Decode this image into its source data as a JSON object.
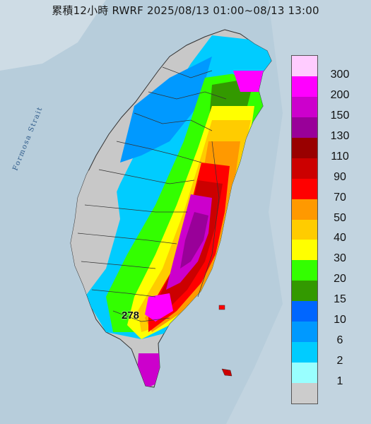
{
  "title": "累積12小時 RWRF 2025/08/13 01:00~08/13 13:00",
  "strait_label": "Formosa Strait",
  "peak_label": "278",
  "legend": {
    "items": [
      {
        "label": "300",
        "color": "#ffccff"
      },
      {
        "label": "200",
        "color": "#ff00ff"
      },
      {
        "label": "150",
        "color": "#cc00cc"
      },
      {
        "label": "130",
        "color": "#990099"
      },
      {
        "label": "110",
        "color": "#990000"
      },
      {
        "label": "90",
        "color": "#cc0000"
      },
      {
        "label": "70",
        "color": "#ff0000"
      },
      {
        "label": "50",
        "color": "#ff9900"
      },
      {
        "label": "40",
        "color": "#ffcc00"
      },
      {
        "label": "30",
        "color": "#ffff00"
      },
      {
        "label": "20",
        "color": "#33ff00"
      },
      {
        "label": "15",
        "color": "#339900"
      },
      {
        "label": "10",
        "color": "#0066ff"
      },
      {
        "label": "6",
        "color": "#0099ff"
      },
      {
        "label": "2",
        "color": "#00ccff"
      },
      {
        "label": "1",
        "color": "#99ffff"
      },
      {
        "label": "",
        "color": "#cccccc"
      }
    ]
  }
}
